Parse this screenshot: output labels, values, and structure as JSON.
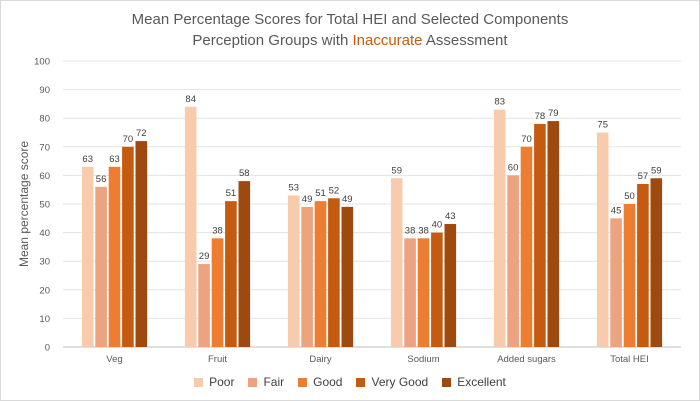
{
  "chart_data": {
    "type": "bar",
    "title_line1": "Mean Percentage Scores for Total HEI and Selected Components",
    "title_line2_pre": "Perception Groups with ",
    "title_line2_highlight": "Inaccurate",
    "title_line2_post": " Assessment",
    "ylabel": "Mean percentage score",
    "xlabel": "",
    "ylim": [
      0,
      100
    ],
    "yticks": [
      0,
      10,
      20,
      30,
      40,
      50,
      60,
      70,
      80,
      90,
      100
    ],
    "grid": true,
    "legend_position": "bottom",
    "categories": [
      "Veg",
      "Fruit",
      "Dairy",
      "Sodium",
      "Added sugars",
      "Total HEI"
    ],
    "series": [
      {
        "name": "Poor",
        "color": "#f8cbad",
        "values": [
          63,
          84,
          53,
          59,
          83,
          75
        ]
      },
      {
        "name": "Fair",
        "color": "#eda380",
        "values": [
          56,
          29,
          49,
          38,
          60,
          45
        ]
      },
      {
        "name": "Good",
        "color": "#ed7d31",
        "values": [
          63,
          38,
          51,
          38,
          70,
          50
        ]
      },
      {
        "name": "Very Good",
        "color": "#c55a11",
        "values": [
          70,
          51,
          52,
          40,
          78,
          57
        ]
      },
      {
        "name": "Excellent",
        "color": "#a0490f",
        "values": [
          72,
          58,
          49,
          43,
          79,
          59
        ]
      }
    ]
  }
}
